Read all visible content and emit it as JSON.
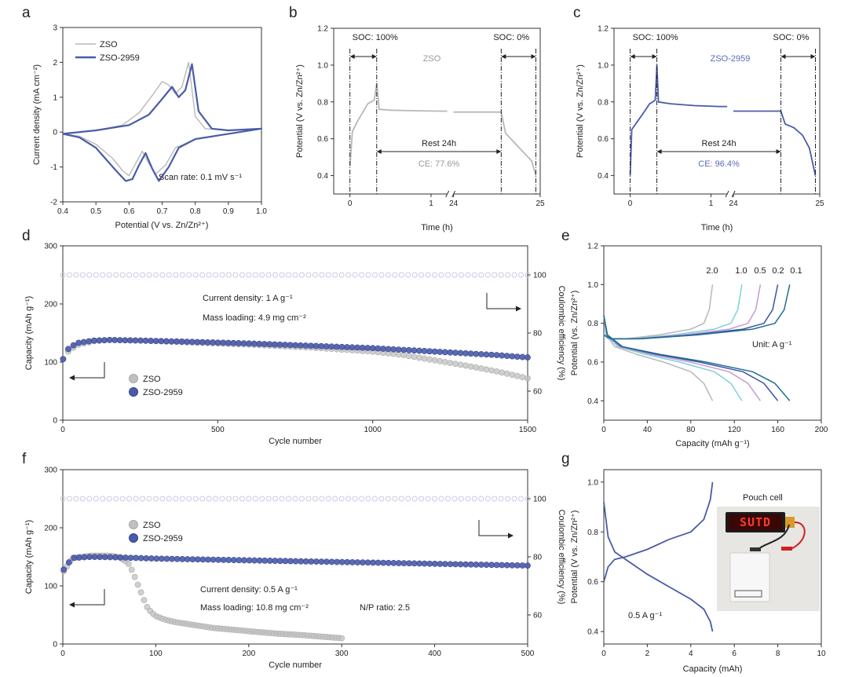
{
  "panel_letters": [
    "a",
    "b",
    "c",
    "d",
    "e",
    "f",
    "g"
  ],
  "chart_data": [
    {
      "panel": "a",
      "type": "line",
      "xlabel": "Potential (V vs. Zn/Zn²⁺)",
      "ylabel": "Current density (mA cm⁻²)",
      "xlim": [
        0.4,
        1.0
      ],
      "ylim": [
        -2,
        3
      ],
      "xticks": [
        0.4,
        0.5,
        0.6,
        0.7,
        0.8,
        0.9,
        1.0
      ],
      "yticks": [
        -2,
        -1,
        0,
        1,
        2,
        3
      ],
      "legend": [
        "ZSO",
        "ZSO-2959"
      ],
      "legend_position": "top-left",
      "annotations": [
        "Scan rate: 0.1 mV s⁻¹"
      ],
      "series": [
        {
          "name": "ZSO",
          "color": "#b8b8b8",
          "x": [
            0.4,
            0.5,
            0.58,
            0.63,
            0.67,
            0.7,
            0.72,
            0.74,
            0.76,
            0.78,
            0.8,
            0.83,
            0.9,
            1.0,
            0.9,
            0.8,
            0.74,
            0.71,
            0.68,
            0.66,
            0.64,
            0.62,
            0.6,
            0.58,
            0.55,
            0.5,
            0.45,
            0.4
          ],
          "y": [
            -0.05,
            0.05,
            0.2,
            0.55,
            1.05,
            1.45,
            1.35,
            1.1,
            1.3,
            2.0,
            0.45,
            0.1,
            0.05,
            0.1,
            -0.05,
            -0.2,
            -0.45,
            -0.95,
            -1.2,
            -0.9,
            -0.55,
            -0.9,
            -1.25,
            -1.1,
            -0.75,
            -0.35,
            -0.12,
            -0.05
          ]
        },
        {
          "name": "ZSO-2959",
          "color": "#4a5ba8",
          "x": [
            0.4,
            0.5,
            0.6,
            0.66,
            0.7,
            0.73,
            0.75,
            0.77,
            0.79,
            0.81,
            0.85,
            0.9,
            1.0,
            0.9,
            0.8,
            0.75,
            0.72,
            0.69,
            0.67,
            0.65,
            0.63,
            0.61,
            0.59,
            0.56,
            0.5,
            0.45,
            0.4
          ],
          "y": [
            -0.05,
            0.05,
            0.2,
            0.5,
            0.95,
            1.3,
            1.0,
            1.2,
            1.95,
            0.6,
            0.1,
            0.05,
            0.1,
            -0.05,
            -0.2,
            -0.45,
            -1.0,
            -1.4,
            -1.05,
            -0.6,
            -0.95,
            -1.35,
            -1.4,
            -1.1,
            -0.45,
            -0.15,
            -0.05
          ]
        }
      ]
    },
    {
      "panel": "b",
      "type": "line",
      "xlabel": "Time (h)",
      "ylabel": "Potential (V vs. Zn/Zn²⁺)",
      "xlim": [
        -0.2,
        25
      ],
      "ylim": [
        0.3,
        1.2
      ],
      "xticks": [
        0,
        1,
        24,
        25
      ],
      "yticks": [
        0.4,
        0.6,
        0.8,
        1.0,
        1.2
      ],
      "series_label": "ZSO",
      "annotations": [
        "SOC: 100%",
        "SOC: 0%",
        "Rest 24h",
        "CE: 77.6%"
      ],
      "series": [
        {
          "color": "#b8b8b8",
          "x": [
            0,
            0.03,
            0.1,
            0.18,
            0.22,
            0.26,
            0.3,
            0.33,
            0.36,
            0.5,
            0.8,
            1.1,
            1.2,
            24.0,
            24.55,
            24.6,
            24.7,
            24.8,
            24.9,
            24.95
          ],
          "y": [
            0.45,
            0.64,
            0.7,
            0.76,
            0.79,
            0.8,
            0.81,
            0.9,
            0.76,
            0.755,
            0.752,
            0.75,
            0.75,
            0.745,
            0.745,
            0.63,
            0.58,
            0.53,
            0.48,
            0.4
          ]
        }
      ]
    },
    {
      "panel": "c",
      "type": "line",
      "xlabel": "Time (h)",
      "ylabel": "Potential (V vs. Zn/Zn²⁺)",
      "xlim": [
        -0.2,
        25
      ],
      "ylim": [
        0.3,
        1.2
      ],
      "xticks": [
        0,
        1,
        24,
        25
      ],
      "yticks": [
        0.4,
        0.6,
        0.8,
        1.0,
        1.2
      ],
      "series_label": "ZSO-2959",
      "annotations": [
        "SOC: 100%",
        "SOC: 0%",
        "Rest 24h",
        "CE: 96.4%"
      ],
      "series": [
        {
          "color": "#4a5ba8",
          "x": [
            0,
            0.02,
            0.1,
            0.18,
            0.24,
            0.28,
            0.31,
            0.33,
            0.35,
            0.5,
            0.8,
            1.1,
            1.2,
            24.0,
            24.55,
            24.6,
            24.7,
            24.8,
            24.88,
            24.95
          ],
          "y": [
            0.4,
            0.65,
            0.7,
            0.75,
            0.79,
            0.8,
            0.81,
            1.0,
            0.8,
            0.79,
            0.78,
            0.775,
            0.775,
            0.75,
            0.75,
            0.68,
            0.66,
            0.62,
            0.55,
            0.4
          ]
        }
      ]
    },
    {
      "panel": "d",
      "type": "scatter",
      "xlabel": "Cycle number",
      "ylabel": "Capacity (mAh g⁻¹)",
      "y2label": "Coulombic efficiency (%)",
      "xlim": [
        0,
        1500
      ],
      "ylim": [
        0,
        300
      ],
      "y2lim": [
        50,
        110
      ],
      "xticks": [
        0,
        500,
        1000,
        1500
      ],
      "yticks": [
        0,
        100,
        200,
        300
      ],
      "y2ticks": [
        60,
        80,
        100
      ],
      "legend": [
        "ZSO",
        "ZSO-2959"
      ],
      "legend_position": "bottom-left",
      "annotations": [
        "Current density: 1 A g⁻¹",
        "Mass loading: 4.9 mg cm⁻²"
      ],
      "series": [
        {
          "name": "ZSO",
          "axis": "left",
          "color": "#c0c0c0",
          "x": [
            1,
            20,
            50,
            100,
            150,
            250,
            400,
            600,
            800,
            1000,
            1100,
            1200,
            1300,
            1400,
            1500
          ],
          "y": [
            105,
            120,
            130,
            136,
            138,
            137,
            134,
            130,
            125,
            118,
            112,
            103,
            94,
            84,
            72
          ]
        },
        {
          "name": "ZSO-2959",
          "axis": "left",
          "color": "#4a5ba8",
          "x": [
            1,
            20,
            50,
            100,
            150,
            250,
            400,
            600,
            800,
            1000,
            1200,
            1400,
            1500
          ],
          "y": [
            105,
            125,
            133,
            137,
            138,
            137,
            135,
            132,
            128,
            124,
            118,
            112,
            108
          ]
        },
        {
          "name": "CE",
          "axis": "right",
          "color": "#c8cbe6",
          "x": [
            0,
            1500
          ],
          "y": [
            100,
            100
          ]
        }
      ]
    },
    {
      "panel": "e",
      "type": "line",
      "xlabel": "Capacity (mAh g⁻¹)",
      "ylabel": "Potential (vs. Zn/Zn²⁺)",
      "xlim": [
        0,
        200
      ],
      "ylim": [
        0.3,
        1.2
      ],
      "xticks": [
        0,
        40,
        80,
        120,
        160,
        200
      ],
      "yticks": [
        0.4,
        0.6,
        0.8,
        1.0,
        1.2
      ],
      "rate_labels": [
        "2.0",
        "1.0",
        "0.5",
        "0.2",
        "0.1"
      ],
      "annotations": [
        "Unit: A g⁻¹"
      ],
      "series": [
        {
          "rate": "2.0",
          "color": "#b8b8b8",
          "cap": 100
        },
        {
          "rate": "1.0",
          "color": "#7fd0dc",
          "cap": 127
        },
        {
          "rate": "0.5",
          "color": "#c79bd1",
          "cap": 144
        },
        {
          "rate": "0.2",
          "color": "#3b54a8",
          "cap": 160
        },
        {
          "rate": "0.1",
          "color": "#1f6f8f",
          "cap": 171
        }
      ]
    },
    {
      "panel": "f",
      "type": "scatter",
      "xlabel": "Cycle number",
      "ylabel": "Capacity (mAh g⁻¹)",
      "y2label": "Coulombic efficiency (%)",
      "xlim": [
        0,
        500
      ],
      "ylim": [
        0,
        300
      ],
      "y2lim": [
        50,
        110
      ],
      "xticks": [
        0,
        100,
        200,
        300,
        400,
        500
      ],
      "yticks": [
        0,
        100,
        200,
        300
      ],
      "y2ticks": [
        60,
        80,
        100
      ],
      "legend": [
        "ZSO",
        "ZSO-2959"
      ],
      "legend_position": "top-left",
      "annotations": [
        "Current density: 0.5 A g⁻¹",
        "Mass loading: 10.8 mg cm⁻²",
        "N/P ratio: 2.5"
      ],
      "series": [
        {
          "name": "ZSO",
          "axis": "left",
          "color": "#c0c0c0",
          "x": [
            1,
            10,
            30,
            50,
            60,
            70,
            75,
            80,
            85,
            90,
            95,
            100,
            110,
            120,
            140,
            160,
            180,
            200,
            230,
            260,
            300
          ],
          "y": [
            125,
            148,
            152,
            152,
            150,
            140,
            125,
            105,
            85,
            65,
            55,
            48,
            42,
            38,
            33,
            28,
            25,
            22,
            18,
            15,
            10
          ]
        },
        {
          "name": "ZSO-2959",
          "axis": "left",
          "color": "#4a5ba8",
          "x": [
            1,
            10,
            30,
            60,
            100,
            200,
            300,
            400,
            500
          ],
          "y": [
            128,
            148,
            150,
            149,
            147,
            144,
            141,
            138,
            135
          ]
        },
        {
          "name": "CE",
          "axis": "right",
          "color": "#c8cbe6",
          "x": [
            0,
            500
          ],
          "y": [
            100,
            100
          ]
        }
      ]
    },
    {
      "panel": "g",
      "type": "line",
      "xlabel": "Capacity (mAh)",
      "ylabel": "Potential (V vs. Zn/Zn²⁺)",
      "xlim": [
        0,
        10
      ],
      "ylim": [
        0.35,
        1.05
      ],
      "xticks": [
        0,
        2,
        4,
        6,
        8,
        10
      ],
      "yticks": [
        0.4,
        0.6,
        0.8,
        1.0
      ],
      "annotations": [
        "0.5 A g⁻¹",
        "Pouch cell"
      ],
      "photo_text": [
        "SUTD"
      ],
      "series": [
        {
          "name": "charge",
          "color": "#4a5ba8",
          "x": [
            0,
            0.2,
            0.5,
            1.0,
            2.0,
            3.0,
            4.0,
            4.6,
            4.9,
            5.0
          ],
          "y": [
            0.6,
            0.66,
            0.69,
            0.7,
            0.73,
            0.77,
            0.8,
            0.85,
            0.93,
            1.0
          ]
        },
        {
          "name": "discharge",
          "color": "#4a5ba8",
          "x": [
            0,
            0.2,
            0.5,
            1.0,
            2.0,
            3.0,
            4.0,
            4.6,
            4.9,
            5.0
          ],
          "y": [
            0.92,
            0.78,
            0.72,
            0.69,
            0.63,
            0.58,
            0.53,
            0.49,
            0.44,
            0.4
          ]
        }
      ]
    }
  ]
}
